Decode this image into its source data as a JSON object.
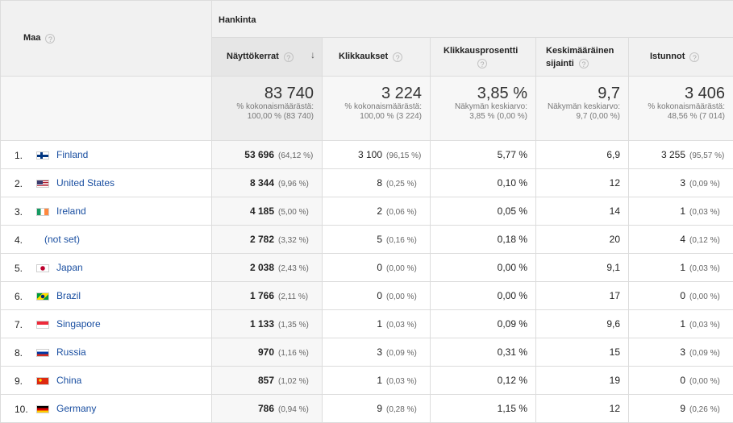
{
  "header": {
    "dimension": "Maa",
    "group": "Hankinta",
    "help": "?",
    "sort_arrow": "↓",
    "columns": [
      {
        "label": "Näyttökerrat"
      },
      {
        "label": "Klikkaukset"
      },
      {
        "label": "Klikkausprosentti"
      },
      {
        "label": "Keskimääräinen sijainti"
      },
      {
        "label": "Istunnot"
      }
    ]
  },
  "totals": [
    {
      "value": "83 740",
      "note": "% kokonaismäärästä: 100,00 % (83 740)"
    },
    {
      "value": "3 224",
      "note": "% kokonaismäärästä: 100,00 % (3 224)"
    },
    {
      "value": "3,85 %",
      "note": "Näkymän keskiarvo: 3,85 % (0,00 %)"
    },
    {
      "value": "9,7",
      "note": "Näkymän keskiarvo: 9,7 (0,00 %)"
    },
    {
      "value": "3 406",
      "note": "% kokonaismäärästä: 48,56 % (7 014)"
    }
  ],
  "rows": [
    {
      "rank": "1.",
      "country": "Finland",
      "flag": "finland-flag-icon",
      "impressions": "53 696",
      "impressions_pct": "(64,12 %)",
      "clicks": "3 100",
      "clicks_pct": "(96,15 %)",
      "ctr": "5,77 %",
      "position": "6,9",
      "sessions": "3 255",
      "sessions_pct": "(95,57 %)"
    },
    {
      "rank": "2.",
      "country": "United States",
      "flag": "united-states-flag-icon",
      "impressions": "8 344",
      "impressions_pct": "(9,96 %)",
      "clicks": "8",
      "clicks_pct": "(0,25 %)",
      "ctr": "0,10 %",
      "position": "12",
      "sessions": "3",
      "sessions_pct": "(0,09 %)"
    },
    {
      "rank": "3.",
      "country": "Ireland",
      "flag": "ireland-flag-icon",
      "impressions": "4 185",
      "impressions_pct": "(5,00 %)",
      "clicks": "2",
      "clicks_pct": "(0,06 %)",
      "ctr": "0,05 %",
      "position": "14",
      "sessions": "1",
      "sessions_pct": "(0,03 %)"
    },
    {
      "rank": "4.",
      "country": "(not set)",
      "flag": "",
      "impressions": "2 782",
      "impressions_pct": "(3,32 %)",
      "clicks": "5",
      "clicks_pct": "(0,16 %)",
      "ctr": "0,18 %",
      "position": "20",
      "sessions": "4",
      "sessions_pct": "(0,12 %)"
    },
    {
      "rank": "5.",
      "country": "Japan",
      "flag": "japan-flag-icon",
      "impressions": "2 038",
      "impressions_pct": "(2,43 %)",
      "clicks": "0",
      "clicks_pct": "(0,00 %)",
      "ctr": "0,00 %",
      "position": "9,1",
      "sessions": "1",
      "sessions_pct": "(0,03 %)"
    },
    {
      "rank": "6.",
      "country": "Brazil",
      "flag": "brazil-flag-icon",
      "impressions": "1 766",
      "impressions_pct": "(2,11 %)",
      "clicks": "0",
      "clicks_pct": "(0,00 %)",
      "ctr": "0,00 %",
      "position": "17",
      "sessions": "0",
      "sessions_pct": "(0,00 %)"
    },
    {
      "rank": "7.",
      "country": "Singapore",
      "flag": "singapore-flag-icon",
      "impressions": "1 133",
      "impressions_pct": "(1,35 %)",
      "clicks": "1",
      "clicks_pct": "(0,03 %)",
      "ctr": "0,09 %",
      "position": "9,6",
      "sessions": "1",
      "sessions_pct": "(0,03 %)"
    },
    {
      "rank": "8.",
      "country": "Russia",
      "flag": "russia-flag-icon",
      "impressions": "970",
      "impressions_pct": "(1,16 %)",
      "clicks": "3",
      "clicks_pct": "(0,09 %)",
      "ctr": "0,31 %",
      "position": "15",
      "sessions": "3",
      "sessions_pct": "(0,09 %)"
    },
    {
      "rank": "9.",
      "country": "China",
      "flag": "china-flag-icon",
      "impressions": "857",
      "impressions_pct": "(1,02 %)",
      "clicks": "1",
      "clicks_pct": "(0,03 %)",
      "ctr": "0,12 %",
      "position": "19",
      "sessions": "0",
      "sessions_pct": "(0,00 %)"
    },
    {
      "rank": "10.",
      "country": "Germany",
      "flag": "germany-flag-icon",
      "impressions": "786",
      "impressions_pct": "(0,94 %)",
      "clicks": "9",
      "clicks_pct": "(0,28 %)",
      "ctr": "1,15 %",
      "position": "12",
      "sessions": "9",
      "sessions_pct": "(0,26 %)"
    }
  ]
}
